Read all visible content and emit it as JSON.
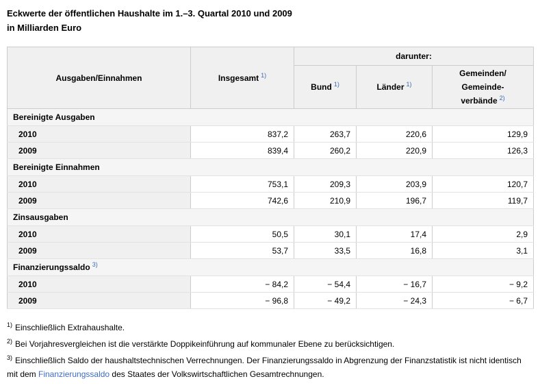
{
  "colors": {
    "header_bg": "#f0f0f0",
    "section_bg": "#f5f5f5",
    "border_gray": "#cccccc",
    "sup_blue": "#3a6cb5",
    "link_blue": "#3e6bc4"
  },
  "title": {
    "line1": "Eckwerte der öffentlichen Haushalte im 1.–3. Quartal 2010 und 2009",
    "line2": "in Milliarden Euro"
  },
  "table": {
    "header": {
      "col_label": "Ausgaben/Einnahmen",
      "col_total": "Insgesamt",
      "col_total_sup": "1)",
      "darunter": "darunter:",
      "col_bund": "Bund",
      "col_bund_sup": "1)",
      "col_laender": "Länder",
      "col_laender_sup": "1)",
      "col_gemeinden": "Gemeinden/\nGemeinde-\nverbände",
      "col_gemeinden_sup": "2)"
    },
    "sections": [
      {
        "title": "Bereinigte Ausgaben",
        "rows": [
          {
            "label": "2010",
            "values": [
              "837,2",
              "263,7",
              "220,6",
              "129,9"
            ]
          },
          {
            "label": "2009",
            "values": [
              "839,4",
              "260,2",
              "220,9",
              "126,3"
            ]
          }
        ]
      },
      {
        "title": "Bereinigte Einnahmen",
        "rows": [
          {
            "label": "2010",
            "values": [
              "753,1",
              "209,3",
              "203,9",
              "120,7"
            ]
          },
          {
            "label": "2009",
            "values": [
              "742,6",
              "210,9",
              "196,7",
              "119,7"
            ]
          }
        ]
      },
      {
        "title": "Zinsausgaben",
        "rows": [
          {
            "label": "2010",
            "values": [
              "50,5",
              "30,1",
              "17,4",
              "2,9"
            ]
          },
          {
            "label": "2009",
            "values": [
              "53,7",
              "33,5",
              "16,8",
              "3,1"
            ]
          }
        ]
      },
      {
        "title": "Finanzierungssaldo",
        "sup": "3)",
        "rows": [
          {
            "label": "2010",
            "values": [
              "− 84,2",
              "− 54,4",
              "− 16,7",
              "− 9,2"
            ]
          },
          {
            "label": "2009",
            "values": [
              "− 96,8",
              "− 49,2",
              "− 24,3",
              "− 6,7"
            ]
          }
        ]
      }
    ]
  },
  "footnotes": [
    {
      "sup": "1)",
      "text": "Einschließlich Extrahaushalte."
    },
    {
      "sup": "2)",
      "text": "Bei Vorjahresvergleichen ist die verstärkte Doppikeinführung auf kommunaler Ebene zu berücksichtigen."
    },
    {
      "sup": "3)",
      "text_before": "Einschließlich Saldo der haushaltstechnischen Verrechnungen. Der Finanzierungssaldo in Abgrenzung der Finanzstatistik ist nicht identisch mit dem ",
      "link": "Finanzierungssaldo",
      "text_after": " des Staates der Volkswirtschaftlichen Gesamtrechnungen."
    }
  ]
}
